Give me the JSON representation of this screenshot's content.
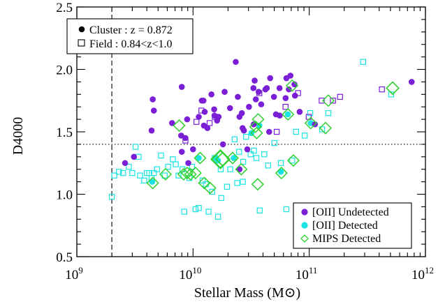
{
  "chart_data": {
    "type": "scatter",
    "xlabel": "Stellar Mass (M⊙)",
    "ylabel": "D4000",
    "xscale": "log",
    "xlim": [
      1000000000,
      1000000000000
    ],
    "ylim": [
      0.5,
      2.5
    ],
    "x_ticks": [
      {
        "value": 1000000000,
        "base": "10",
        "exp": "9"
      },
      {
        "value": 10000000000,
        "base": "10",
        "exp": "10"
      },
      {
        "value": 100000000000,
        "base": "10",
        "exp": "11"
      },
      {
        "value": 1000000000000,
        "base": "10",
        "exp": "12"
      }
    ],
    "y_ticks": [
      0.5,
      1.0,
      1.5,
      2.0,
      2.5
    ],
    "y_tick_labels": [
      "0.5",
      "1.0",
      "1.5",
      "2.0",
      "2.5"
    ],
    "reference_lines": [
      {
        "orientation": "vertical",
        "x": 2000000000,
        "style": "dashed"
      },
      {
        "orientation": "horizontal",
        "y": 1.4,
        "style": "dotted"
      }
    ],
    "colors": {
      "oii_undetected": "#7a1fd6",
      "oii_detected": "#19e3e3",
      "mips": "#2fd12f"
    },
    "top_legend": [
      {
        "marker": "filled-circle",
        "label": "Cluster : z = 0.872"
      },
      {
        "marker": "open-square",
        "label": "Field : 0.84<z<1.0"
      }
    ],
    "bottom_legend": [
      {
        "marker": "filled-circle",
        "color_key": "oii_undetected",
        "label": "[OII] Undetected"
      },
      {
        "marker": "filled-circle",
        "color_key": "oii_detected",
        "label": "[OII] Detected"
      },
      {
        "marker": "open-diamond",
        "color_key": "mips",
        "label": "MIPS Detected"
      }
    ],
    "series": [
      {
        "name": "[OII] Undetected",
        "sample": "Cluster",
        "marker": "filled-circle",
        "color_key": "oii_undetected",
        "points": [
          [
            2600000000.0,
            1.25
          ],
          [
            3100000000.0,
            1.3
          ],
          [
            4500000000.0,
            1.76
          ],
          [
            4600000000.0,
            1.67
          ],
          [
            4400000000.0,
            1.51
          ],
          [
            6600000000.0,
            1.57
          ],
          [
            8000000000.0,
            1.86
          ],
          [
            7900000000.0,
            1.47
          ],
          [
            8600000000.0,
            1.45
          ],
          [
            8000000000.0,
            1.34
          ],
          [
            8900000000.0,
            1.6
          ],
          [
            9100000000.0,
            1.25
          ],
          [
            10000000000.0,
            1.36
          ],
          [
            11200000000.0,
            1.62
          ],
          [
            11900000000.0,
            1.75
          ],
          [
            12300000000.0,
            1.75
          ],
          [
            12600000000.0,
            1.66
          ],
          [
            12400000000.0,
            1.55
          ],
          [
            13300000000.0,
            1.53
          ],
          [
            14400000000.0,
            1.8
          ],
          [
            15200000000.0,
            1.68
          ],
          [
            16600000000.0,
            1.62
          ],
          [
            15300000000.0,
            1.63
          ],
          [
            16100000000.0,
            1.59
          ],
          [
            18700000000.0,
            1.82
          ],
          [
            20800000000.0,
            1.69
          ],
          [
            23300000000.0,
            2.06
          ],
          [
            24300000000.0,
            1.78
          ],
          [
            26300000000.0,
            1.65
          ],
          [
            25100000000.0,
            1.62
          ],
          [
            26700000000.0,
            1.53
          ],
          [
            27400000000.0,
            1.51
          ],
          [
            30300000000.0,
            1.7
          ],
          [
            33100000000.0,
            1.85
          ],
          [
            33900000000.0,
            1.91
          ],
          [
            34700000000.0,
            1.76
          ],
          [
            36700000000.0,
            1.82
          ],
          [
            38600000000.0,
            1.72
          ],
          [
            42000000000.0,
            1.84
          ],
          [
            43100000000.0,
            1.85
          ],
          [
            46100000000.0,
            1.93
          ],
          [
            49700000000.0,
            1.78
          ],
          [
            55500000000.0,
            1.85
          ],
          [
            55700000000.0,
            1.63
          ],
          [
            62600000000.0,
            1.77
          ],
          [
            63600000000.0,
            1.93
          ],
          [
            66700000000.0,
            1.84
          ],
          [
            74600000000.0,
            1.88
          ],
          [
            75400000000.0,
            1.79
          ],
          [
            82700000000.0,
            1.66
          ],
          [
            33300000000.0,
            1.56
          ],
          [
            25100000000.0,
            1.2
          ],
          [
            112000000000.0,
            1.56
          ],
          [
            45200000000.0,
            1.5
          ],
          [
            761000000000.0,
            1.9
          ],
          [
            68900000000.0,
            1.95
          ],
          [
            51700000000.0,
            1.64
          ],
          [
            29300000000.0,
            1.36
          ],
          [
            18100000000.0,
            1.4
          ]
        ]
      },
      {
        "name": "[OII] Undetected",
        "sample": "Field",
        "marker": "open-square",
        "color_key": "oii_undetected",
        "points": [
          [
            8600000000.0,
            1.43
          ],
          [
            10700000000.0,
            1.58
          ],
          [
            11800000000.0,
            1.67
          ],
          [
            37200000000.0,
            1.81
          ],
          [
            80100000000.0,
            1.81
          ],
          [
            128000000000.0,
            1.75
          ],
          [
            160000000000.0,
            1.75
          ],
          [
            184000000000.0,
            1.78
          ],
          [
            422000000000.0,
            1.84
          ],
          [
            62500000000.0,
            1.7
          ],
          [
            13900000000.0,
            1.57
          ],
          [
            52500000000.0,
            1.5
          ],
          [
            15400000000.0,
            1.62
          ],
          [
            99000000000.0,
            1.62
          ]
        ]
      },
      {
        "name": "[OII] Detected",
        "sample": "Cluster",
        "marker": "filled-circle",
        "color_key": "oii_detected",
        "points": [
          [
            15700000000.0,
            1.29
          ],
          [
            16400000000.0,
            1.27
          ],
          [
            22400000000.0,
            1.29
          ],
          [
            31800000000.0,
            1.49
          ],
          [
            65400000000.0,
            1.64
          ],
          [
            4450000000.0,
            1.1
          ],
          [
            103000000000.0,
            1.57
          ],
          [
            37200000000.0,
            1.55
          ],
          [
            11200000000.0,
            1.29
          ],
          [
            57000000000.0,
            1.18
          ]
        ]
      },
      {
        "name": "[OII] Detected",
        "sample": "Field",
        "marker": "open-square",
        "color_key": "oii_detected",
        "points": [
          [
            2000000000.0,
            0.98
          ],
          [
            2100000000.0,
            1.15
          ],
          [
            2300000000.0,
            1.18
          ],
          [
            2500000000.0,
            1.17
          ],
          [
            2800000000.0,
            1.22
          ],
          [
            3000000000.0,
            1.17
          ],
          [
            3200000000.0,
            1.38
          ],
          [
            3400000000.0,
            1.3
          ],
          [
            3500000000.0,
            1.15
          ],
          [
            3800000000.0,
            1.11
          ],
          [
            4000000000.0,
            1.17
          ],
          [
            4200000000.0,
            1.17
          ],
          [
            4400000000.0,
            1.13
          ],
          [
            4600000000.0,
            1.17
          ],
          [
            4900000000.0,
            1.2
          ],
          [
            5300000000.0,
            1.31
          ],
          [
            5700000000.0,
            1.15
          ],
          [
            6100000000.0,
            1.22
          ],
          [
            6700000000.0,
            1.28
          ],
          [
            7100000000.0,
            1.24
          ],
          [
            7500000000.0,
            1.15
          ],
          [
            8100000000.0,
            1.2
          ],
          [
            8400000000.0,
            0.86
          ],
          [
            9300000000.0,
            1.13
          ],
          [
            9800000000.0,
            1.22
          ],
          [
            10500000000.0,
            0.88
          ],
          [
            11200000000.0,
            0.89
          ],
          [
            12100000000.0,
            1.11
          ],
          [
            12900000000.0,
            1.08
          ],
          [
            13600000000.0,
            0.86
          ],
          [
            14600000000.0,
            1.02
          ],
          [
            15400000000.0,
            1.29
          ],
          [
            16400000000.0,
            0.82
          ],
          [
            17300000000.0,
            1.2
          ],
          [
            19600000000.0,
            1.06
          ],
          [
            20900000000.0,
            1.2
          ],
          [
            22800000000.0,
            1.44
          ],
          [
            24900000000.0,
            1.34
          ],
          [
            27000000000.0,
            1.26
          ],
          [
            28600000000.0,
            1.46
          ],
          [
            31300000000.0,
            1.32
          ],
          [
            33400000000.0,
            1.35
          ],
          [
            35100000000.0,
            1.29
          ],
          [
            37500000000.0,
            0.87
          ],
          [
            41000000000.0,
            1.32
          ],
          [
            44300000000.0,
            1.23
          ],
          [
            50100000000.0,
            1.41
          ],
          [
            57000000000.0,
            1.25
          ],
          [
            63500000000.0,
            0.88
          ],
          [
            71300000000.0,
            1.27
          ],
          [
            77000000000.0,
            1.5
          ],
          [
            91400000000.0,
            1.47
          ],
          [
            102000000000.0,
            1.65
          ],
          [
            129000000000.0,
            1.52
          ],
          [
            146000000000.0,
            1.65
          ],
          [
            291000000000.0,
            2.06
          ],
          [
            507000000000.0,
            1.8
          ],
          [
            24000000000.0,
            1.09
          ],
          [
            17500000000.0,
            0.97
          ],
          [
            26800000000.0,
            1.1
          ]
        ]
      },
      {
        "name": "MIPS Detected",
        "marker": "open-diamond",
        "color_key": "mips",
        "points": [
          [
            4500000000.0,
            1.09,
            1.0
          ],
          [
            5800000000.0,
            1.16,
            1.0
          ],
          [
            7600000000.0,
            1.55,
            1.0
          ],
          [
            8300000000.0,
            1.16,
            1.0
          ],
          [
            8900000000.0,
            1.17,
            1.0
          ],
          [
            9500000000.0,
            1.16,
            1.0
          ],
          [
            10500000000.0,
            1.17,
            1.0
          ],
          [
            11500000000.0,
            1.29,
            1.0
          ],
          [
            12500000000.0,
            1.09,
            1.0
          ],
          [
            14000000000.0,
            1.05,
            1.0
          ],
          [
            17200000000.0,
            1.28,
            1.6
          ],
          [
            18000000000.0,
            1.28,
            1.2
          ],
          [
            21900000000.0,
            1.29,
            1.0
          ],
          [
            26000000000.0,
            1.2,
            1.0
          ],
          [
            34500000000.0,
            1.54,
            1.0
          ],
          [
            35300000000.0,
            1.49,
            1.0
          ],
          [
            36000000000.0,
            1.08,
            1.0
          ],
          [
            36300000000.0,
            1.6,
            1.0
          ],
          [
            57600000000.0,
            1.17,
            1.0
          ],
          [
            65700000000.0,
            1.64,
            1.0
          ],
          [
            71200000000.0,
            1.87,
            1.0
          ],
          [
            73000000000.0,
            1.27,
            1.0
          ],
          [
            103000000000.0,
            1.57,
            1.0
          ],
          [
            138000000000.0,
            1.53,
            1.0
          ],
          [
            146000000000.0,
            1.75,
            1.0
          ],
          [
            522000000000.0,
            1.85,
            1.1
          ]
        ]
      }
    ]
  }
}
